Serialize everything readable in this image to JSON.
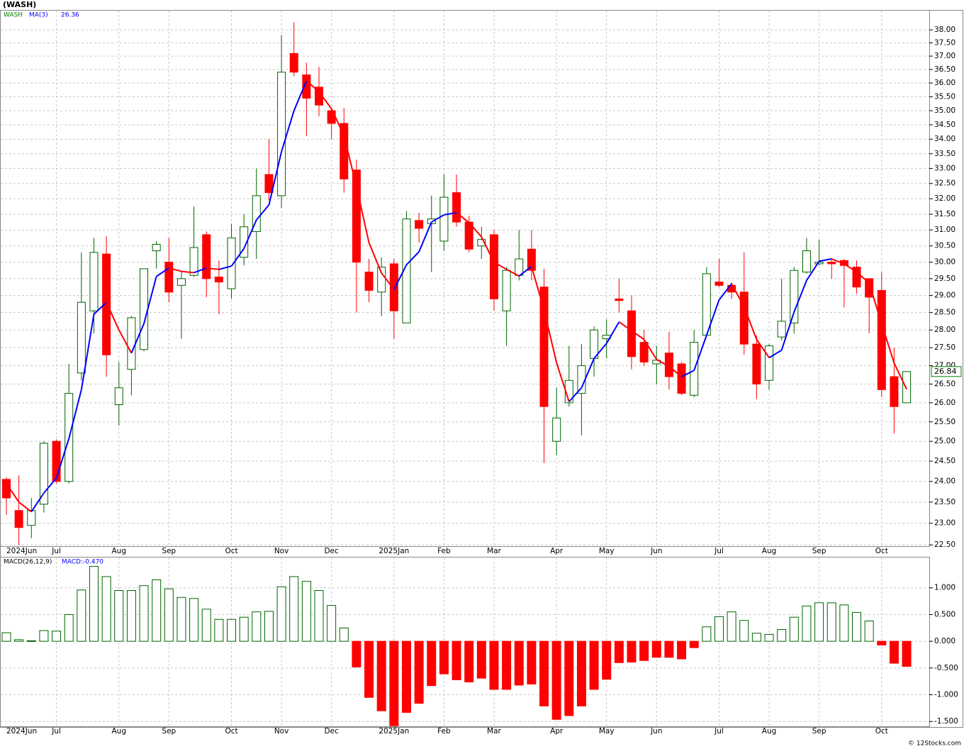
{
  "title": "(WASH)",
  "credit": "© 12Stocks.com",
  "chart_data": [
    {
      "type": "candlestick",
      "name": "WASH",
      "name_color": "#008000",
      "categories": [
        "2024Jun",
        null,
        null,
        null,
        "Jul",
        null,
        null,
        null,
        null,
        "Aug",
        null,
        null,
        null,
        "Sep",
        null,
        null,
        null,
        null,
        "Oct",
        null,
        null,
        null,
        "Nov",
        null,
        null,
        null,
        "Dec",
        null,
        null,
        null,
        null,
        "2025Jan",
        null,
        null,
        null,
        "Feb",
        null,
        null,
        null,
        "Mar",
        null,
        null,
        null,
        null,
        "Apr",
        null,
        null,
        null,
        "May",
        null,
        null,
        null,
        "Jun",
        null,
        null,
        null,
        null,
        "Jul",
        null,
        null,
        null,
        "Aug",
        null,
        null,
        null,
        "Sep",
        null,
        null,
        null,
        null,
        "Oct",
        null,
        null
      ],
      "open": [
        24.05,
        23.3,
        22.95,
        23.45,
        25.0,
        24.0,
        26.8,
        28.55,
        30.25,
        25.95,
        26.9,
        27.45,
        30.35,
        30.0,
        29.3,
        29.6,
        30.85,
        29.55,
        29.2,
        30.15,
        30.95,
        32.8,
        32.1,
        37.1,
        36.3,
        35.85,
        35.0,
        34.55,
        32.95,
        29.7,
        29.1,
        29.95,
        28.2,
        31.3,
        31.2,
        30.65,
        32.2,
        31.25,
        30.5,
        30.85,
        28.55,
        29.6,
        30.4,
        29.25,
        25.0,
        26.0,
        26.25,
        27.2,
        27.75,
        28.9,
        28.55,
        27.65,
        27.05,
        27.35,
        27.05,
        26.2,
        27.85,
        29.4,
        29.3,
        29.1,
        27.6,
        26.6,
        27.8,
        28.2,
        29.7,
        29.95,
        30.0,
        30.05,
        29.85,
        29.5,
        29.15,
        26.7,
        26.0
      ],
      "high": [
        24.1,
        24.15,
        23.6,
        25.0,
        25.05,
        27.05,
        30.3,
        30.75,
        30.8,
        27.1,
        28.4,
        29.8,
        30.65,
        30.75,
        29.7,
        31.75,
        30.95,
        30.05,
        31.2,
        31.5,
        33.0,
        34.0,
        37.8,
        38.3,
        36.75,
        36.6,
        35.1,
        35.1,
        33.3,
        30.1,
        30.15,
        30.1,
        31.6,
        31.55,
        32.1,
        32.8,
        32.8,
        31.45,
        31.1,
        31.0,
        29.85,
        31.0,
        31.0,
        29.8,
        26.4,
        27.55,
        27.6,
        28.1,
        28.3,
        29.5,
        29.0,
        28.0,
        27.55,
        27.95,
        27.1,
        28.0,
        29.85,
        30.1,
        29.4,
        30.3,
        27.85,
        27.6,
        29.5,
        29.85,
        30.75,
        30.7,
        30.1,
        30.1,
        30.05,
        29.5,
        29.7,
        27.5,
        26.84
      ],
      "low": [
        23.2,
        22.5,
        22.65,
        23.25,
        23.95,
        23.95,
        26.6,
        27.9,
        26.7,
        25.4,
        26.2,
        27.4,
        29.8,
        28.8,
        27.75,
        29.55,
        28.95,
        28.45,
        28.9,
        29.9,
        30.1,
        31.95,
        31.7,
        36.25,
        34.1,
        34.8,
        34.0,
        32.2,
        28.5,
        28.8,
        28.4,
        27.75,
        28.2,
        30.6,
        29.7,
        30.35,
        31.1,
        30.3,
        30.1,
        28.55,
        27.55,
        29.45,
        29.45,
        24.45,
        24.65,
        25.9,
        25.15,
        26.7,
        27.2,
        28.5,
        26.9,
        27.0,
        26.5,
        26.35,
        26.2,
        26.15,
        27.8,
        29.25,
        28.9,
        27.3,
        26.1,
        26.35,
        27.7,
        27.9,
        29.65,
        29.9,
        29.5,
        28.65,
        29.05,
        27.9,
        26.15,
        25.2,
        26.0
      ],
      "close": [
        23.6,
        22.9,
        23.3,
        24.95,
        24.0,
        26.25,
        28.8,
        30.3,
        27.3,
        26.4,
        28.35,
        29.8,
        30.55,
        29.1,
        29.5,
        30.45,
        29.5,
        29.4,
        30.75,
        31.1,
        32.1,
        32.2,
        36.4,
        36.4,
        35.45,
        35.2,
        34.55,
        32.65,
        30.0,
        29.15,
        29.85,
        28.55,
        31.35,
        31.05,
        31.35,
        32.05,
        31.25,
        30.4,
        30.7,
        28.9,
        29.75,
        30.1,
        29.75,
        25.9,
        25.6,
        26.6,
        27.0,
        28.0,
        27.85,
        28.85,
        27.25,
        27.1,
        27.15,
        26.7,
        26.25,
        27.65,
        29.65,
        29.3,
        29.1,
        27.6,
        26.5,
        27.55,
        28.25,
        29.75,
        30.35,
        30.0,
        29.95,
        29.9,
        29.25,
        28.95,
        26.35,
        25.9,
        26.84
      ],
      "last_value_label": "26.84",
      "up_color": "#006400",
      "down_color": "#ff0000",
      "last_label_color": "#008000",
      "log_scale": true,
      "grid": true,
      "ylim": [
        22.47,
        38.78
      ],
      "yticks": [
        {
          "value": 22.5,
          "label": "22.50"
        },
        {
          "value": 23,
          "label": "23.00"
        },
        {
          "value": 23.5,
          "label": "23.50"
        },
        {
          "value": 24,
          "label": "24.00"
        },
        {
          "value": 24.5,
          "label": "24.50"
        },
        {
          "value": 25,
          "label": "25.00"
        },
        {
          "value": 25.5,
          "label": "25.50"
        },
        {
          "value": 26,
          "label": "26.00"
        },
        {
          "value": 26.5,
          "label": "26.50"
        },
        {
          "value": 27,
          "label": "27.00"
        },
        {
          "value": 27.5,
          "label": "27.50"
        },
        {
          "value": 28,
          "label": "28.00"
        },
        {
          "value": 28.5,
          "label": "28.50"
        },
        {
          "value": 29,
          "label": "29.00"
        },
        {
          "value": 29.5,
          "label": "29.50"
        },
        {
          "value": 30,
          "label": "30.00"
        },
        {
          "value": 30.5,
          "label": "30.50"
        },
        {
          "value": 31,
          "label": "31.00"
        },
        {
          "value": 31.5,
          "label": "31.50"
        },
        {
          "value": 32,
          "label": "32.00"
        },
        {
          "value": 32.5,
          "label": "32.50"
        },
        {
          "value": 33,
          "label": "33.00"
        },
        {
          "value": 33.5,
          "label": "33.50"
        },
        {
          "value": 34,
          "label": "34.00"
        },
        {
          "value": 34.5,
          "label": "34.50"
        },
        {
          "value": 35,
          "label": "35.00"
        },
        {
          "value": 35.5,
          "label": "35.50"
        },
        {
          "value": 36,
          "label": "36.00"
        },
        {
          "value": 36.5,
          "label": "36.50"
        },
        {
          "value": 37,
          "label": "37.00"
        },
        {
          "value": 37.5,
          "label": "37.50"
        },
        {
          "value": 38,
          "label": "38.00"
        }
      ],
      "ma": {
        "name": "MA(3)",
        "last_value_label": "26.36",
        "label_color": "#0000ff",
        "up_color": "#0000ff",
        "down_color": "#ff0000",
        "values": [
          23.95,
          23.5,
          23.27,
          23.72,
          24.08,
          25.07,
          26.35,
          28.45,
          28.8,
          28.0,
          27.35,
          28.18,
          29.57,
          29.82,
          29.72,
          29.68,
          29.82,
          29.78,
          29.88,
          30.42,
          31.32,
          31.8,
          33.57,
          35.0,
          36.08,
          35.68,
          35.07,
          34.13,
          32.4,
          30.6,
          29.67,
          29.18,
          29.92,
          30.32,
          31.25,
          31.48,
          31.55,
          31.23,
          30.78,
          30.0,
          29.78,
          29.58,
          29.87,
          28.58,
          27.08,
          26.03,
          26.4,
          27.2,
          27.62,
          28.23,
          27.98,
          27.73,
          27.17,
          26.98,
          26.7,
          26.87,
          27.85,
          28.87,
          29.35,
          28.67,
          27.73,
          27.22,
          27.43,
          28.52,
          29.45,
          30.03,
          30.1,
          29.95,
          29.7,
          29.37,
          28.18,
          27.07,
          26.36
        ]
      }
    },
    {
      "type": "bar",
      "name": "MACD(26,12,9)",
      "last_value_label": "MACD:-0.470",
      "label_color": "#0000ff",
      "categories": [
        "2024Jun",
        null,
        null,
        null,
        "Jul",
        null,
        null,
        null,
        null,
        "Aug",
        null,
        null,
        null,
        "Sep",
        null,
        null,
        null,
        null,
        "Oct",
        null,
        null,
        null,
        "Nov",
        null,
        null,
        null,
        "Dec",
        null,
        null,
        null,
        null,
        "2025Jan",
        null,
        null,
        null,
        "Feb",
        null,
        null,
        null,
        "Mar",
        null,
        null,
        null,
        null,
        "Apr",
        null,
        null,
        null,
        "May",
        null,
        null,
        null,
        "Jun",
        null,
        null,
        null,
        null,
        "Jul",
        null,
        null,
        null,
        "Aug",
        null,
        null,
        null,
        "Sep",
        null,
        null,
        null,
        null,
        "Oct",
        null,
        null
      ],
      "values": [
        0.16,
        0.03,
        0.01,
        0.2,
        0.19,
        0.5,
        0.96,
        1.4,
        1.21,
        0.95,
        0.95,
        1.04,
        1.15,
        0.98,
        0.82,
        0.8,
        0.6,
        0.41,
        0.41,
        0.45,
        0.55,
        0.56,
        1.02,
        1.21,
        1.12,
        0.95,
        0.67,
        0.25,
        -0.48,
        -1.05,
        -1.3,
        -1.58,
        -1.33,
        -1.16,
        -0.83,
        -0.61,
        -0.72,
        -0.76,
        -0.69,
        -0.9,
        -0.9,
        -0.82,
        -0.8,
        -1.21,
        -1.46,
        -1.39,
        -1.21,
        -0.9,
        -0.71,
        -0.4,
        -0.39,
        -0.36,
        -0.3,
        -0.3,
        -0.33,
        -0.12,
        0.27,
        0.46,
        0.55,
        0.39,
        0.15,
        0.13,
        0.22,
        0.45,
        0.66,
        0.72,
        0.72,
        0.68,
        0.54,
        0.38,
        -0.07,
        -0.41,
        -0.47
      ],
      "up_color": "#006400",
      "down_color": "#ff0000",
      "grid": true,
      "ylim": [
        -1.59,
        1.58
      ],
      "yticks": [
        {
          "value": -1.5,
          "label": "-1.500"
        },
        {
          "value": -1,
          "label": "-1.000"
        },
        {
          "value": -0.5,
          "label": "-0.500"
        },
        {
          "value": 0,
          "label": "0.000"
        },
        {
          "value": 0.5,
          "label": "0.500"
        },
        {
          "value": 1,
          "label": "1.000"
        }
      ]
    }
  ]
}
